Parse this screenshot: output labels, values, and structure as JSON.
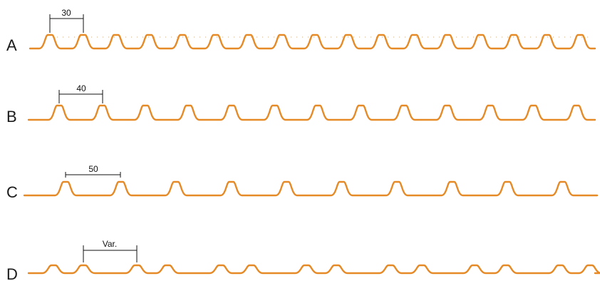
{
  "colors": {
    "profile": "#e58a26",
    "dimension": "#111111",
    "label": "#1a1a1a"
  },
  "profiles": [
    {
      "letter": "A",
      "spacing_label": "30",
      "pitch": 30,
      "pattern": "uniform"
    },
    {
      "letter": "B",
      "spacing_label": "40",
      "pitch": 40,
      "pattern": "uniform"
    },
    {
      "letter": "C",
      "spacing_label": "50",
      "pitch": 50,
      "pattern": "uniform"
    },
    {
      "letter": "D",
      "spacing_label": "Var.",
      "pitch": null,
      "pattern": "variable"
    }
  ]
}
